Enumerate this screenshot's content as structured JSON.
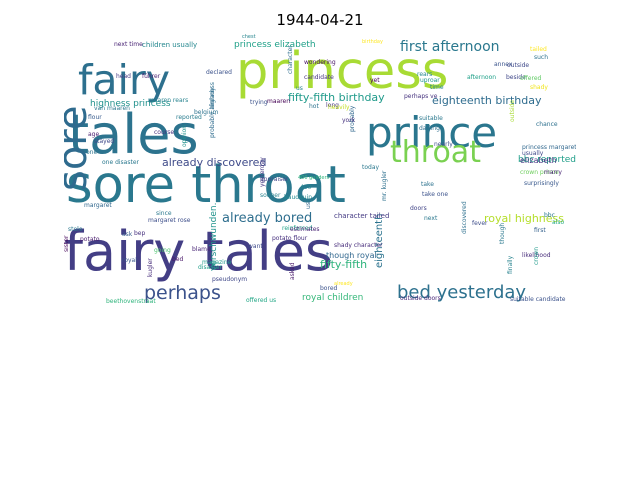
{
  "figure": {
    "title": "1944-04-21"
  },
  "wordcloud": {
    "words": [
      {
        "text": "fairy tales",
        "color": "#433e85"
      },
      {
        "text": "sore throat",
        "color": "#2a788e"
      },
      {
        "text": "tales",
        "color": "#2c738e"
      },
      {
        "text": "princess",
        "color": "#a8db34"
      },
      {
        "text": "prince",
        "color": "#2a768e"
      },
      {
        "text": "fairy",
        "color": "#2d708e"
      },
      {
        "text": "sore",
        "color": "#2f6b8e"
      },
      {
        "text": "throat",
        "color": "#7ad151"
      },
      {
        "text": "bed yesterday",
        "color": "#2d718e"
      },
      {
        "text": "perhaps",
        "color": "#3b528b"
      },
      {
        "text": "first afternoon",
        "color": "#2a788e"
      },
      {
        "text": "already bored",
        "color": "#2e6e8e"
      },
      {
        "text": "already discovered",
        "color": "#3e4a89"
      },
      {
        "text": "fifty-fifth birthday",
        "color": "#1f9a8a"
      },
      {
        "text": "eighteenth birthday",
        "color": "#2f6c8e"
      },
      {
        "text": "fifty-fifth",
        "color": "#2eb37c"
      },
      {
        "text": "royal highness",
        "color": "#b5de2b"
      },
      {
        "text": "highness princess",
        "color": "#21918c"
      },
      {
        "text": "princess elizabeth",
        "color": "#1fa088"
      },
      {
        "text": "royal children",
        "color": "#35b779"
      },
      {
        "text": "bbc reported",
        "color": "#1f9e89"
      },
      {
        "text": "though royal",
        "color": "#31678e"
      },
      {
        "text": "verschwunden.",
        "color": "#20938c"
      },
      {
        "text": "children usually",
        "color": "#24878e"
      },
      {
        "text": "next time",
        "color": "#482374"
      },
      {
        "text": "elizabeth",
        "color": "#453581"
      },
      {
        "text": "crown prince",
        "color": "#6ccd5a"
      },
      {
        "text": "princess margaret",
        "color": "#31688e"
      },
      {
        "text": "annex",
        "color": "#3a548c"
      },
      {
        "text": "afternoon",
        "color": "#1fa088"
      },
      {
        "text": "outside doors",
        "color": "#482878"
      },
      {
        "text": "suitable candidate",
        "color": "#3b528b"
      },
      {
        "text": "eighteenth",
        "color": "#2c738e"
      },
      {
        "text": "character tailed",
        "color": "#443a83"
      },
      {
        "text": "shady character",
        "color": "#472d7b"
      },
      {
        "text": "potato flour",
        "color": "#46307e"
      },
      {
        "text": "offered us",
        "color": "#21a685"
      },
      {
        "text": "beethovenstraat",
        "color": "#2fb47c"
      },
      {
        "text": "margaret rose",
        "color": "#3d4e8a"
      },
      {
        "text": "one disaster",
        "color": "#2a788e"
      },
      {
        "text": "maaren rears",
        "color": "#26828e"
      },
      {
        "text": "reinforced",
        "color": "#1fa187"
      },
      {
        "text": "wondering",
        "color": "#471365"
      },
      {
        "text": "candidate",
        "color": "#46337f"
      },
      {
        "text": "birthday",
        "color": "#fde725"
      },
      {
        "text": "outside",
        "color": "#3e4989"
      },
      {
        "text": "tailed",
        "color": "#fde725"
      },
      {
        "text": "such",
        "color": "#2c728e"
      },
      {
        "text": "beside",
        "color": "#3f4788"
      },
      {
        "text": "offered",
        "color": "#5ec962"
      },
      {
        "text": "shady",
        "color": "#f1e51d"
      },
      {
        "text": "rears",
        "color": "#24868e"
      },
      {
        "text": "time",
        "color": "#25838e"
      },
      {
        "text": "yet",
        "color": "#440154"
      },
      {
        "text": "uproar",
        "color": "#1f968b"
      },
      {
        "text": "perhaps ve",
        "color": "#46327e"
      },
      {
        "text": "long",
        "color": "#46327e"
      },
      {
        "text": "suitable",
        "color": "#2a788e"
      },
      {
        "text": "darling",
        "color": "#2e6f8e"
      },
      {
        "text": "chance",
        "color": "#2d708e"
      },
      {
        "text": "nearly",
        "color": "#3d4d8a"
      },
      {
        "text": "usually",
        "color": "#3f4889"
      },
      {
        "text": "marry",
        "color": "#482475"
      },
      {
        "text": "surprisingly",
        "color": "#38588c"
      },
      {
        "text": "bbc",
        "color": "#2a788e"
      },
      {
        "text": "also",
        "color": "#22a884"
      },
      {
        "text": "first",
        "color": "#34618d"
      },
      {
        "text": "fever",
        "color": "#3d4d8a"
      },
      {
        "text": "likelihood",
        "color": "#472c7a"
      },
      {
        "text": "finally",
        "color": "#26828e"
      },
      {
        "text": "discovered",
        "color": "#2d708e"
      },
      {
        "text": "though",
        "color": "#2a788e"
      },
      {
        "text": "crown",
        "color": "#1f9a8a"
      },
      {
        "text": "outside",
        "color": "#a8db34"
      },
      {
        "text": "take one",
        "color": "#3b528b"
      },
      {
        "text": "take",
        "color": "#2c728e"
      },
      {
        "text": "doors",
        "color": "#414487"
      },
      {
        "text": "next",
        "color": "#2a788e"
      },
      {
        "text": "today",
        "color": "#2a788e"
      },
      {
        "text": "mr. kugler",
        "color": "#2d708e"
      },
      {
        "text": "probably",
        "color": "#31688e"
      },
      {
        "text": "york",
        "color": "#46327e"
      },
      {
        "text": "us",
        "color": "#31688e"
      },
      {
        "text": "400 guilders",
        "color": "#2fb47c"
      },
      {
        "text": "baudouin",
        "color": "#23898e"
      },
      {
        "text": "400",
        "color": "#25848e"
      },
      {
        "text": "asked",
        "color": "#48186a"
      },
      {
        "text": "bored",
        "color": "#3b528b"
      },
      {
        "text": "chest",
        "color": "#25858e"
      },
      {
        "text": "already",
        "color": "#fde725"
      },
      {
        "text": "estimates",
        "color": "#482475"
      },
      {
        "text": "want",
        "color": "#3e4a89"
      },
      {
        "text": "pseudonym",
        "color": "#3f4788"
      },
      {
        "text": "disaster",
        "color": "#1f9e89"
      },
      {
        "text": "sooner",
        "color": "#26828e"
      },
      {
        "text": "appraiser",
        "color": "#414487"
      },
      {
        "text": "yesterday",
        "color": "#443983"
      },
      {
        "text": "heavily",
        "color": "#c2df23"
      },
      {
        "text": "hot",
        "color": "#2c738e"
      },
      {
        "text": "ask",
        "color": "#365c8d"
      },
      {
        "text": "bep",
        "color": "#46307e"
      },
      {
        "text": "blame",
        "color": "#482576"
      },
      {
        "text": "since",
        "color": "#2a788e"
      },
      {
        "text": "bed",
        "color": "#481668"
      },
      {
        "text": "going",
        "color": "#4ac16d"
      },
      {
        "text": "kugler",
        "color": "#472d7b"
      },
      {
        "text": "royal",
        "color": "#39568c"
      },
      {
        "text": "magazine",
        "color": "#1e9b8a"
      },
      {
        "text": "potato",
        "color": "#481a6c"
      },
      {
        "text": "margaret",
        "color": "#31688e"
      },
      {
        "text": "sister",
        "color": "#46085c"
      },
      {
        "text": "stole",
        "color": "#2a788e"
      },
      {
        "text": "head",
        "color": "#443a83"
      },
      {
        "text": "stayed",
        "color": "#3e4989"
      },
      {
        "text": "one",
        "color": "#2c738e"
      },
      {
        "text": "führer",
        "color": "#482071"
      },
      {
        "text": "flour",
        "color": "#375b8d"
      },
      {
        "text": "van maaren",
        "color": "#2a788e"
      },
      {
        "text": "trying",
        "color": "#3b528b"
      },
      {
        "text": "maaren",
        "color": "#440154"
      },
      {
        "text": "character",
        "color": "#2e6e8e"
      },
      {
        "text": "course",
        "color": "#46307e"
      },
      {
        "text": "opinion",
        "color": "#21918c"
      },
      {
        "text": "declared",
        "color": "#3b528b"
      },
      {
        "text": "probably already",
        "color": "#2f6c8e"
      },
      {
        "text": "belgium",
        "color": "#2c728e"
      },
      {
        "text": "highness",
        "color": "#2e6f8e"
      },
      {
        "text": "reported",
        "color": "#287c8e"
      },
      {
        "text": "age",
        "color": "#481b6d"
      },
      {
        "text": "us",
        "color": "#26828e"
      }
    ]
  }
}
